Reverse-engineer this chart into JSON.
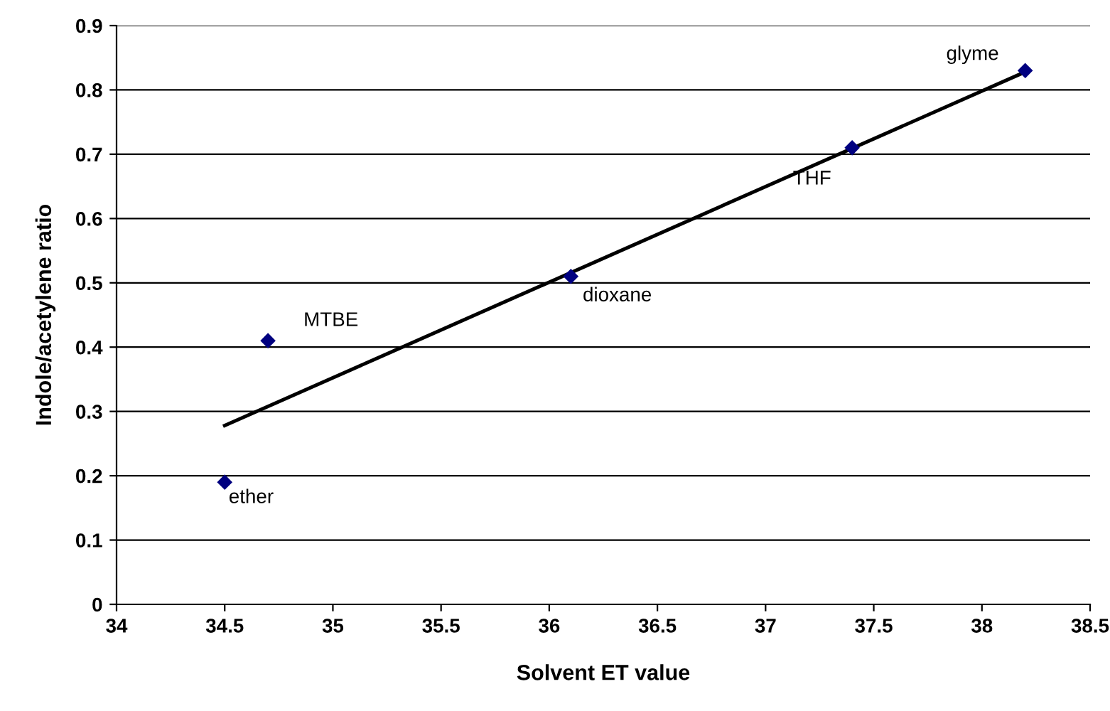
{
  "chart_data": {
    "type": "scatter",
    "xlabel": "Solvent ET value",
    "ylabel": "Indole/acetylene ratio",
    "series": [
      {
        "color": "#000080",
        "marker": "diamond",
        "x": [
          34.5,
          34.7,
          36.1,
          37.4,
          38.2
        ],
        "values": [
          0.19,
          0.41,
          0.51,
          0.71,
          0.83
        ]
      },
      {
        "type": "line",
        "color": "#000000",
        "marker": "none",
        "x": [
          34.5,
          38.2
        ],
        "values": [
          0.278,
          0.828
        ]
      }
    ],
    "annotations": [
      {
        "text": "ether",
        "x": 34.5,
        "y": 0.19
      },
      {
        "text": "MTBE",
        "x": 34.7,
        "y": 0.41
      },
      {
        "text": "dioxane",
        "x": 36.1,
        "y": 0.51
      },
      {
        "text": "THF",
        "x": 37.4,
        "y": 0.71
      },
      {
        "text": "glyme",
        "x": 38.2,
        "y": 0.83
      }
    ],
    "xlim": [
      34,
      38.5
    ],
    "xticks": [
      34,
      34.5,
      35,
      35.5,
      36,
      36.5,
      37,
      37.5,
      38,
      38.5
    ],
    "ylim": [
      0,
      0.9
    ],
    "yticks": [
      0,
      0.1,
      0.2,
      0.3,
      0.4,
      0.5,
      0.6,
      0.7,
      0.8,
      0.9
    ],
    "grid": "y",
    "legend": false
  }
}
